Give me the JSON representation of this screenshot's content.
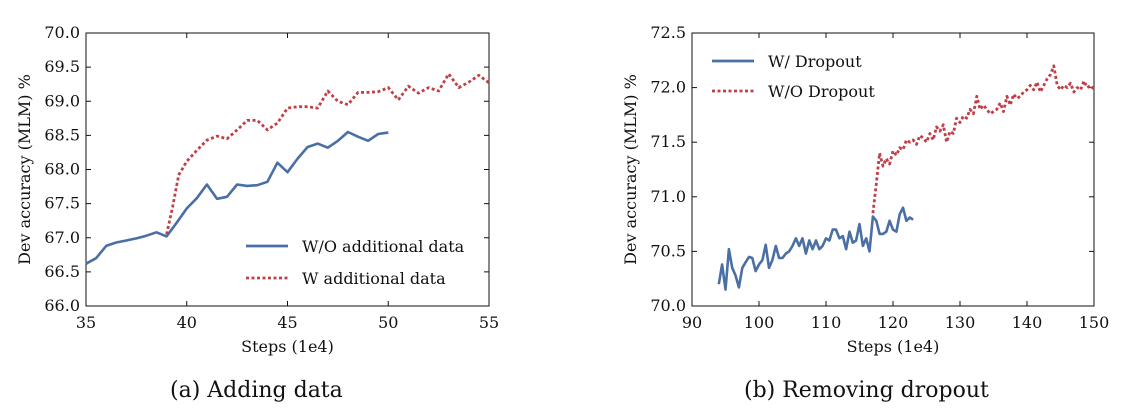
{
  "chart_data": [
    {
      "type": "line",
      "caption": "(a) Adding data",
      "xlabel": "Steps (1e4)",
      "ylabel": "Dev accuracy (MLM) %",
      "xlim": [
        35,
        55
      ],
      "ylim": [
        66.0,
        70.0
      ],
      "xticks": [
        "35",
        "40",
        "45",
        "50",
        "55"
      ],
      "yticks": [
        "66.0",
        "66.5",
        "67.0",
        "67.5",
        "68.0",
        "68.5",
        "69.0",
        "69.5",
        "70.0"
      ],
      "grid": false,
      "legend_position": "lower-right",
      "series": [
        {
          "name": "W/O additional data",
          "color": "#4a6fa5",
          "style": "solid",
          "x": [
            35.0,
            35.5,
            36.0,
            36.5,
            37.0,
            37.5,
            38.0,
            38.5,
            39.0,
            39.5,
            40.0,
            40.5,
            41.0,
            41.5,
            42.0,
            42.5,
            43.0,
            43.5,
            44.0,
            44.5,
            45.0,
            45.5,
            46.0,
            46.5,
            47.0,
            47.5,
            48.0,
            48.5,
            49.0,
            49.5,
            50.0
          ],
          "y": [
            66.62,
            66.7,
            66.88,
            66.93,
            66.96,
            66.99,
            67.03,
            67.08,
            67.02,
            67.22,
            67.43,
            67.58,
            67.78,
            67.57,
            67.6,
            67.78,
            67.76,
            67.77,
            67.82,
            68.1,
            67.96,
            68.16,
            68.33,
            68.38,
            68.32,
            68.42,
            68.55,
            68.48,
            68.42,
            68.52,
            68.54
          ]
        },
        {
          "name": "W additional data",
          "color": "#c0404a",
          "style": "dotted",
          "x": [
            39.0,
            39.3,
            39.6,
            40.0,
            40.5,
            41.0,
            41.5,
            42.0,
            42.5,
            43.0,
            43.5,
            44.0,
            44.5,
            45.0,
            45.5,
            46.0,
            46.5,
            47.0,
            47.5,
            48.0,
            48.5,
            49.0,
            49.5,
            50.0,
            50.5,
            51.0,
            51.5,
            52.0,
            52.5,
            53.0,
            53.5,
            54.0,
            54.5,
            55.0
          ],
          "y": [
            67.05,
            67.45,
            67.92,
            68.12,
            68.28,
            68.43,
            68.49,
            68.45,
            68.58,
            68.72,
            68.72,
            68.58,
            68.68,
            68.9,
            68.92,
            68.92,
            68.9,
            69.15,
            69.0,
            68.95,
            69.13,
            69.13,
            69.14,
            69.2,
            69.02,
            69.22,
            69.12,
            69.2,
            69.15,
            69.4,
            69.2,
            69.28,
            69.38,
            69.27
          ]
        }
      ]
    },
    {
      "type": "line",
      "caption": "(b) Removing dropout",
      "xlabel": "Steps (1e4)",
      "ylabel": "Dev accuracy (MLM) %",
      "xlim": [
        90,
        150
      ],
      "ylim": [
        70.0,
        72.5
      ],
      "xticks": [
        "90",
        "100",
        "110",
        "120",
        "130",
        "140",
        "150"
      ],
      "yticks": [
        "70.0",
        "70.5",
        "71.0",
        "71.5",
        "72.0",
        "72.5"
      ],
      "grid": false,
      "legend_position": "upper-left",
      "series": [
        {
          "name": "W/ Dropout",
          "color": "#4a6fa5",
          "style": "solid",
          "x": [
            94,
            94.5,
            95,
            95.5,
            96,
            96.5,
            97,
            97.5,
            98,
            98.5,
            99,
            99.5,
            100,
            100.5,
            101,
            101.5,
            102,
            102.5,
            103,
            103.5,
            104,
            104.5,
            105,
            105.5,
            106,
            106.5,
            107,
            107.5,
            108,
            108.5,
            109,
            109.5,
            110,
            110.5,
            111,
            111.5,
            112,
            112.5,
            113,
            113.5,
            114,
            114.5,
            115,
            115.5,
            116,
            116.5,
            117,
            117.5,
            118,
            118.5,
            119,
            119.5,
            120,
            120.5,
            121,
            121.5,
            122,
            122.5,
            123
          ],
          "y": [
            70.2,
            70.38,
            70.15,
            70.52,
            70.35,
            70.28,
            70.17,
            70.35,
            70.4,
            70.45,
            70.44,
            70.32,
            70.38,
            70.42,
            70.56,
            70.35,
            70.42,
            70.55,
            70.44,
            70.44,
            70.48,
            70.5,
            70.55,
            70.62,
            70.55,
            70.62,
            70.48,
            70.6,
            70.52,
            70.6,
            70.52,
            70.55,
            70.62,
            70.6,
            70.7,
            70.7,
            70.62,
            70.64,
            70.52,
            70.68,
            70.58,
            70.6,
            70.75,
            70.55,
            70.62,
            70.5,
            70.82,
            70.78,
            70.66,
            70.66,
            70.68,
            70.78,
            70.7,
            70.68,
            70.84,
            70.9,
            70.78,
            70.81,
            70.79
          ]
        },
        {
          "name": "W/O Dropout",
          "color": "#c0404a",
          "style": "dotted",
          "x": [
            117,
            117.5,
            118,
            118.5,
            119,
            119.5,
            120,
            120.5,
            121,
            121.5,
            122,
            122.5,
            123,
            123.5,
            124,
            124.5,
            125,
            125.5,
            126,
            126.5,
            127,
            127.5,
            128,
            128.5,
            129,
            129.5,
            130,
            130.5,
            131,
            131.5,
            132,
            132.5,
            133,
            133.5,
            134,
            134.5,
            135,
            135.5,
            136,
            136.5,
            137,
            137.5,
            138,
            138.5,
            139,
            139.5,
            140,
            140.5,
            141,
            141.5,
            142,
            142.5,
            143,
            143.5,
            144,
            144.5,
            145,
            145.5,
            146,
            146.5,
            147,
            147.5,
            148,
            148.5,
            149,
            149.5,
            150
          ],
          "y": [
            70.85,
            71.12,
            71.4,
            71.28,
            71.35,
            71.3,
            71.42,
            71.38,
            71.45,
            71.43,
            71.52,
            71.5,
            71.52,
            71.48,
            71.56,
            71.54,
            71.5,
            71.58,
            71.52,
            71.64,
            71.6,
            71.66,
            71.5,
            71.6,
            71.58,
            71.72,
            71.68,
            71.74,
            71.72,
            71.8,
            71.76,
            71.92,
            71.8,
            71.84,
            71.8,
            71.76,
            71.78,
            71.8,
            71.86,
            71.78,
            71.92,
            71.84,
            71.94,
            71.9,
            71.92,
            71.96,
            71.98,
            72.02,
            71.98,
            72.05,
            71.96,
            72.02,
            72.08,
            72.12,
            72.2,
            72.02,
            71.98,
            72.02,
            72.0,
            72.04,
            71.96,
            72.0,
            71.98,
            72.06,
            72.0,
            72.02,
            71.98
          ]
        }
      ]
    }
  ]
}
